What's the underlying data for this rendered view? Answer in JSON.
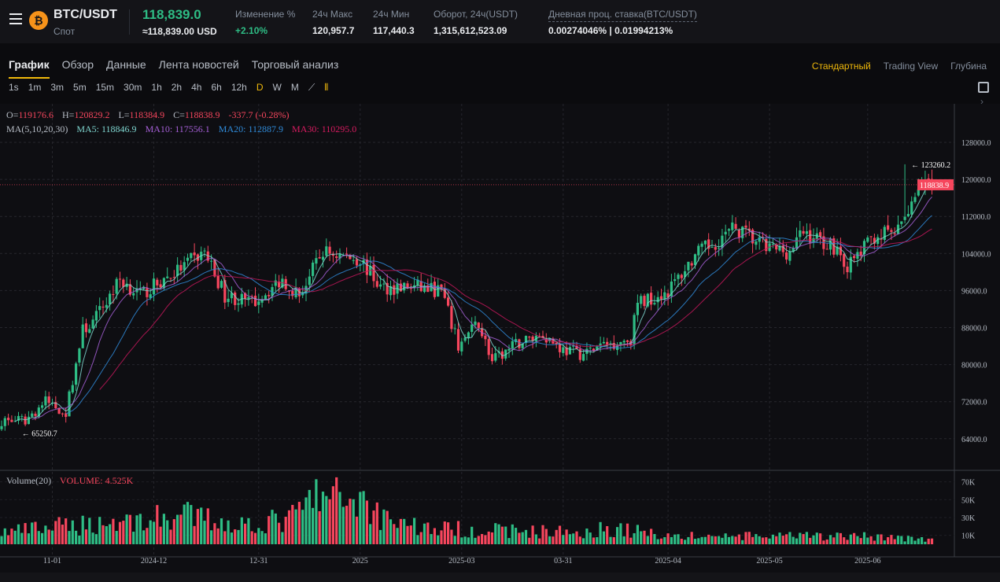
{
  "header": {
    "pair": "BTC/USDT",
    "market": "Спот",
    "last_price": "118,839.0",
    "usd_price": "≈118,839.00 USD",
    "stats": [
      {
        "label": "Изменение %",
        "value": "+2.10%"
      },
      {
        "label": "24ч Макс",
        "value": "120,957.7"
      },
      {
        "label": "24ч Мин",
        "value": "117,440.3"
      },
      {
        "label": "Оборот, 24ч(USDT)",
        "value": "1,315,612,523.09"
      },
      {
        "label": "Дневная проц. ставка(BTC/USDT)",
        "value": "0.00274046% | 0.01994213%"
      }
    ]
  },
  "tabs": [
    "График",
    "Обзор",
    "Данные",
    "Лента новостей",
    "Торговый анализ"
  ],
  "views": [
    "Стандартный",
    "Trading View",
    "Глубина"
  ],
  "intervals": [
    "1s",
    "1m",
    "3m",
    "5m",
    "15m",
    "30m",
    "1h",
    "2h",
    "4h",
    "6h",
    "12h",
    "D",
    "W",
    "M"
  ],
  "active_interval": "D",
  "ohlc": {
    "o_label": "O=",
    "o": "119176.6",
    "h_label": "H=",
    "h": "120829.2",
    "l_label": "L=",
    "l": "118384.9",
    "c_label": "C=",
    "c": "118838.9",
    "change": "-337.7 (-0.28%)"
  },
  "ma": {
    "label": "MA(5,10,20,30)",
    "ma5": "MA5: 118846.9",
    "ma10": "MA10: 117556.1",
    "ma20": "MA20: 112887.9",
    "ma30": "MA30: 110295.0"
  },
  "volume": {
    "label": "Volume(20)",
    "value": "VOLUME: 4.525K"
  },
  "colors": {
    "up": "#2ebd85",
    "down": "#f6465d",
    "ma5": "#7fd6d0",
    "ma10": "#a55fd6",
    "ma20": "#2f8ad8",
    "ma30": "#c2185b",
    "accent": "#f0b90b"
  },
  "chart_data": {
    "type": "candlestick",
    "days": 276,
    "close_anchors": [
      [
        0,
        67900
      ],
      [
        7,
        67900
      ],
      [
        13,
        72100
      ],
      [
        19,
        69600
      ],
      [
        24,
        87400
      ],
      [
        27,
        89100
      ],
      [
        35,
        98400
      ],
      [
        41,
        95000
      ],
      [
        50,
        99300
      ],
      [
        60,
        104400
      ],
      [
        66,
        95000
      ],
      [
        74,
        93300
      ],
      [
        83,
        98400
      ],
      [
        88,
        95000
      ],
      [
        95,
        104400
      ],
      [
        106,
        102700
      ],
      [
        112,
        96700
      ],
      [
        123,
        96700
      ],
      [
        130,
        95900
      ],
      [
        135,
        84000
      ],
      [
        141,
        89100
      ],
      [
        145,
        80600
      ],
      [
        153,
        84800
      ],
      [
        160,
        86600
      ],
      [
        166,
        83200
      ],
      [
        172,
        82300
      ],
      [
        177,
        84000
      ],
      [
        186,
        85700
      ],
      [
        188,
        93300
      ],
      [
        197,
        95900
      ],
      [
        205,
        103500
      ],
      [
        217,
        109500
      ],
      [
        226,
        105200
      ],
      [
        233,
        104400
      ],
      [
        237,
        108600
      ],
      [
        247,
        105200
      ],
      [
        250,
        101000
      ],
      [
        258,
        107800
      ],
      [
        265,
        108600
      ],
      [
        271,
        118800
      ],
      [
        275,
        118839
      ]
    ],
    "high_marker": "123260.2",
    "low_marker": "65250.7",
    "last_label": "118838.9",
    "y_ticks": [
      "128000.0",
      "120000.0",
      "112000.0",
      "104000.0",
      "96000.0",
      "88000.0",
      "80000.0",
      "72000.0",
      "64000.0"
    ],
    "y_range": [
      60000,
      136000
    ],
    "x_ticks": [
      {
        "day": 15,
        "label": "11-01"
      },
      {
        "day": 45,
        "label": "2024-12"
      },
      {
        "day": 76,
        "label": "12-31"
      },
      {
        "day": 106,
        "label": "2025"
      },
      {
        "day": 136,
        "label": "2025-03"
      },
      {
        "day": 166,
        "label": "03-31"
      },
      {
        "day": 197,
        "label": "2025-04"
      },
      {
        "day": 227,
        "label": "2025-05"
      },
      {
        "day": 256,
        "label": "2025-06"
      }
    ],
    "volume_ticks": [
      "70K",
      "50K",
      "30K",
      "10K"
    ],
    "volume_range_k": [
      0,
      80
    ],
    "volume_anchors_k": [
      [
        0,
        15
      ],
      [
        25,
        25
      ],
      [
        40,
        30
      ],
      [
        55,
        35
      ],
      [
        70,
        25
      ],
      [
        85,
        30
      ],
      [
        93,
        60
      ],
      [
        97,
        55
      ],
      [
        106,
        60
      ],
      [
        110,
        40
      ],
      [
        125,
        20
      ],
      [
        140,
        18
      ],
      [
        170,
        15
      ],
      [
        180,
        20
      ],
      [
        200,
        10
      ],
      [
        230,
        10
      ],
      [
        260,
        10
      ],
      [
        275,
        5
      ]
    ]
  }
}
